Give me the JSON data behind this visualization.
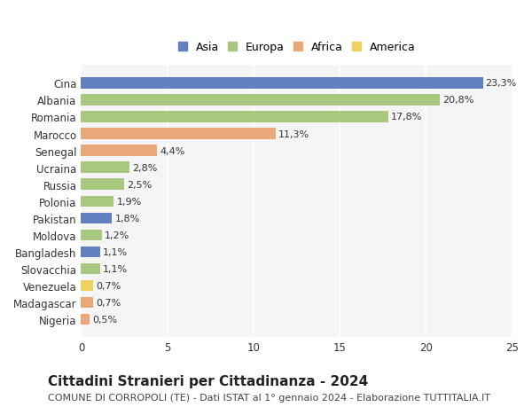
{
  "countries": [
    "Cina",
    "Albania",
    "Romania",
    "Marocco",
    "Senegal",
    "Ucraina",
    "Russia",
    "Polonia",
    "Pakistan",
    "Moldova",
    "Bangladesh",
    "Slovacchia",
    "Venezuela",
    "Madagascar",
    "Nigeria"
  ],
  "values": [
    23.3,
    20.8,
    17.8,
    11.3,
    4.4,
    2.8,
    2.5,
    1.9,
    1.8,
    1.2,
    1.1,
    1.1,
    0.7,
    0.7,
    0.5
  ],
  "labels": [
    "23,3%",
    "20,8%",
    "17,8%",
    "11,3%",
    "4,4%",
    "2,8%",
    "2,5%",
    "1,9%",
    "1,8%",
    "1,2%",
    "1,1%",
    "1,1%",
    "0,7%",
    "0,7%",
    "0,5%"
  ],
  "continents": [
    "Asia",
    "Europa",
    "Europa",
    "Africa",
    "Africa",
    "Europa",
    "Europa",
    "Europa",
    "Asia",
    "Europa",
    "Asia",
    "Europa",
    "America",
    "Africa",
    "Africa"
  ],
  "colors": {
    "Asia": "#6080c0",
    "Europa": "#a8c880",
    "Africa": "#e8a878",
    "America": "#f0d060"
  },
  "xlim": [
    0,
    25
  ],
  "xticks": [
    0,
    5,
    10,
    15,
    20,
    25
  ],
  "title": "Cittadini Stranieri per Cittadinanza - 2024",
  "subtitle": "COMUNE DI CORROPOLI (TE) - Dati ISTAT al 1° gennaio 2024 - Elaborazione TUTTITALIA.IT",
  "bg_color": "#ffffff",
  "plot_bg_color": "#f5f5f5",
  "grid_color": "#ffffff",
  "bar_height": 0.65,
  "title_fontsize": 11,
  "subtitle_fontsize": 8,
  "label_fontsize": 8,
  "tick_fontsize": 8.5,
  "legend_fontsize": 9,
  "legend_order": [
    "Asia",
    "Europa",
    "Africa",
    "America"
  ]
}
